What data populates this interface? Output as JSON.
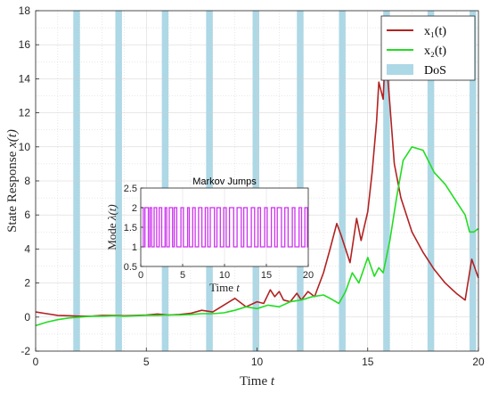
{
  "chart_data": [
    {
      "type": "line",
      "xlabel_prefix": "Time",
      "xlabel_var": "t",
      "ylabel_prefix": "State Response",
      "ylabel_var": "x(t)",
      "xlim": [
        0,
        20
      ],
      "ylim": [
        -2,
        18
      ],
      "xticks": [
        0,
        5,
        10,
        15,
        20
      ],
      "yticks": [
        -2,
        0,
        2,
        4,
        6,
        8,
        10,
        12,
        14,
        16,
        18
      ],
      "grid": true,
      "legend_position": "top-right",
      "dos": {
        "name": "DoS",
        "color": "#add8e6",
        "intervals": [
          [
            1.7,
            2.0
          ],
          [
            3.6,
            3.9
          ],
          [
            5.7,
            6.0
          ],
          [
            7.7,
            8.0
          ],
          [
            9.8,
            10.1
          ],
          [
            11.8,
            12.1
          ],
          [
            13.7,
            14.0
          ],
          [
            15.7,
            16.0
          ],
          [
            17.7,
            18.0
          ],
          [
            19.6,
            19.9
          ]
        ]
      },
      "series": [
        {
          "name": "x₁(t)",
          "color": "#b22222",
          "x": [
            0,
            0.5,
            1,
            1.5,
            2,
            2.5,
            3,
            3.5,
            4,
            4.5,
            5,
            5.5,
            6,
            6.5,
            7,
            7.5,
            8,
            8.5,
            9,
            9.5,
            10,
            10.3,
            10.6,
            10.8,
            11,
            11.2,
            11.5,
            11.8,
            12,
            12.3,
            12.6,
            13,
            13.3,
            13.6,
            13.8,
            14,
            14.2,
            14.5,
            14.7,
            15,
            15.2,
            15.4,
            15.5,
            15.7,
            15.8,
            16,
            16.2,
            16.5,
            17,
            17.5,
            18,
            18.5,
            19,
            19.4,
            19.7,
            20
          ],
          "values": [
            0.3,
            0.2,
            0.1,
            0.08,
            0.05,
            0.05,
            0.1,
            0.1,
            0.08,
            0.1,
            0.12,
            0.18,
            0.12,
            0.15,
            0.22,
            0.4,
            0.3,
            0.7,
            1.1,
            0.6,
            0.9,
            0.8,
            1.6,
            1.2,
            1.5,
            1.0,
            0.9,
            1.4,
            1.0,
            1.5,
            1.2,
            2.6,
            4.0,
            5.5,
            4.8,
            4.0,
            3.2,
            5.8,
            4.5,
            6.2,
            8.5,
            11.5,
            13.8,
            12.8,
            15.8,
            12.5,
            9.0,
            7.0,
            5.0,
            3.8,
            2.8,
            2.0,
            1.4,
            1.0,
            3.4,
            2.3
          ]
        },
        {
          "name": "x₂(t)",
          "color": "#22dd22",
          "x": [
            0,
            0.5,
            1,
            1.5,
            2,
            2.5,
            3,
            3.5,
            4,
            4.5,
            5,
            5.5,
            6,
            6.5,
            7,
            7.5,
            8,
            8.5,
            9,
            9.5,
            10,
            10.5,
            11,
            11.5,
            12,
            12.5,
            13,
            13.3,
            13.7,
            14,
            14.3,
            14.6,
            15,
            15.3,
            15.5,
            15.7,
            16,
            16.3,
            16.6,
            17,
            17.5,
            18,
            18.5,
            19,
            19.4,
            19.6,
            19.8,
            20
          ],
          "values": [
            -0.5,
            -0.3,
            -0.15,
            -0.05,
            0,
            0.05,
            0.05,
            0.08,
            0.05,
            0.08,
            0.1,
            0.1,
            0.12,
            0.12,
            0.15,
            0.2,
            0.2,
            0.25,
            0.4,
            0.6,
            0.5,
            0.7,
            0.6,
            0.9,
            1.0,
            1.2,
            1.3,
            1.1,
            0.8,
            1.5,
            2.6,
            2.0,
            3.5,
            2.4,
            2.9,
            2.6,
            4.5,
            7.0,
            9.2,
            10.0,
            9.8,
            8.5,
            7.8,
            6.8,
            6.0,
            5.0,
            5.0,
            5.2
          ]
        }
      ]
    },
    {
      "type": "line",
      "title": "Markov Jumps",
      "xlabel_prefix": "Time",
      "xlabel_var": "t",
      "ylabel_prefix": "Mode",
      "ylabel_var": "λ(t)",
      "xlim": [
        0,
        20
      ],
      "ylim": [
        0.5,
        2.5
      ],
      "xticks": [
        0,
        5,
        10,
        15,
        20
      ],
      "yticks": [
        0.5,
        1,
        1.5,
        2,
        2.5
      ],
      "ytick_labels": [
        "0.5",
        "1",
        "1.5",
        "2",
        "2.5"
      ],
      "grid": true,
      "series": [
        {
          "name": "mode",
          "color": "#cc33ee",
          "switch_times": [
            0,
            0.3,
            0.5,
            0.9,
            1.1,
            1.3,
            1.6,
            1.9,
            2.2,
            2.5,
            2.9,
            3.1,
            3.4,
            3.8,
            4.0,
            4.3,
            4.8,
            5.1,
            5.6,
            5.8,
            6.2,
            6.5,
            6.9,
            7.3,
            7.7,
            8.0,
            8.3,
            8.8,
            9.1,
            9.5,
            9.9,
            10.2,
            10.6,
            11.1,
            11.5,
            12.0,
            12.3,
            12.7,
            13.2,
            13.6,
            14.0,
            14.3,
            14.8,
            15.1,
            15.6,
            16.0,
            16.3,
            16.8,
            17.2,
            17.6,
            18.1,
            18.4,
            18.9,
            19.2,
            19.6,
            19.9
          ],
          "start_mode": 2
        }
      ]
    }
  ]
}
